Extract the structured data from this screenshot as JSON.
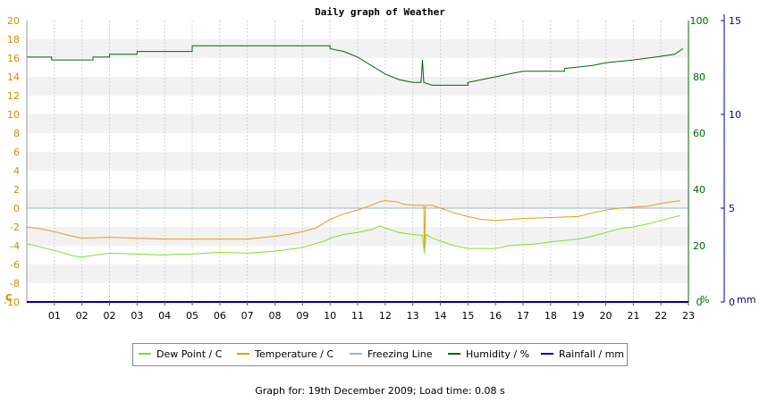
{
  "chart_data": {
    "type": "line",
    "title": "Daily graph of Weather",
    "x_ticks": [
      "01",
      "02",
      "02",
      "03",
      "04",
      "05",
      "06",
      "07",
      "08",
      "09",
      "10",
      "11",
      "12",
      "13",
      "14",
      "15",
      "16",
      "17",
      "18",
      "19",
      "20",
      "21",
      "22",
      "23"
    ],
    "x_range": [
      0,
      24
    ],
    "y_left": {
      "label": "C",
      "min": -10,
      "max": 20,
      "ticks": [
        -10,
        -8,
        -6,
        -4,
        -2,
        0,
        2,
        4,
        6,
        8,
        10,
        12,
        14,
        16,
        18,
        20
      ],
      "color": "#d08c00"
    },
    "y_humidity": {
      "label": "%",
      "min": 0,
      "max": 100,
      "ticks": [
        0,
        20,
        40,
        60,
        80,
        100
      ],
      "color": "#006600"
    },
    "y_rain": {
      "label": "mm",
      "min": 0,
      "max": 15,
      "ticks": [
        0,
        5,
        10,
        15
      ],
      "color": "#000099"
    },
    "series": [
      {
        "name": "Dew Point / C",
        "axis": "temp",
        "color": "#7ee12a",
        "points": [
          [
            0,
            -3.8
          ],
          [
            1,
            -4.5
          ],
          [
            1.7,
            -5.1
          ],
          [
            2,
            -5.2
          ],
          [
            2.5,
            -5.0
          ],
          [
            3,
            -4.8
          ],
          [
            4,
            -4.9
          ],
          [
            5,
            -5.0
          ],
          [
            5.5,
            -4.9
          ],
          [
            6,
            -4.9
          ],
          [
            7,
            -4.7
          ],
          [
            8,
            -4.8
          ],
          [
            9,
            -4.6
          ],
          [
            10,
            -4.2
          ],
          [
            10.8,
            -3.5
          ],
          [
            11,
            -3.2
          ],
          [
            11.5,
            -2.8
          ],
          [
            12,
            -2.6
          ],
          [
            12.5,
            -2.3
          ],
          [
            12.8,
            -1.9
          ],
          [
            13.1,
            -2.2
          ],
          [
            13.5,
            -2.6
          ],
          [
            14,
            -2.8
          ],
          [
            14.35,
            -2.9
          ],
          [
            14.42,
            -4.8
          ],
          [
            14.48,
            -2.8
          ],
          [
            14.7,
            -3.2
          ],
          [
            15,
            -3.5
          ],
          [
            15.5,
            -4.0
          ],
          [
            16,
            -4.3
          ],
          [
            17,
            -4.3
          ],
          [
            17.5,
            -4.0
          ],
          [
            18.5,
            -3.8
          ],
          [
            19,
            -3.6
          ],
          [
            20,
            -3.3
          ],
          [
            20.5,
            -3.0
          ],
          [
            21,
            -2.6
          ],
          [
            21.5,
            -2.2
          ],
          [
            22,
            -2.0
          ],
          [
            22.5,
            -1.7
          ],
          [
            23,
            -1.3
          ],
          [
            23.7,
            -0.8
          ]
        ]
      },
      {
        "name": "Temperature / C",
        "axis": "temp",
        "color": "#e89a10",
        "points": [
          [
            0,
            -2.0
          ],
          [
            0.5,
            -2.2
          ],
          [
            1,
            -2.5
          ],
          [
            1.5,
            -2.9
          ],
          [
            2,
            -3.2
          ],
          [
            3,
            -3.1
          ],
          [
            4,
            -3.2
          ],
          [
            5,
            -3.3
          ],
          [
            6,
            -3.3
          ],
          [
            7,
            -3.3
          ],
          [
            8,
            -3.3
          ],
          [
            9,
            -3.0
          ],
          [
            9.5,
            -2.8
          ],
          [
            10,
            -2.5
          ],
          [
            10.5,
            -2.1
          ],
          [
            11,
            -1.2
          ],
          [
            11.5,
            -0.6
          ],
          [
            12,
            -0.2
          ],
          [
            12.5,
            0.3
          ],
          [
            12.8,
            0.7
          ],
          [
            13,
            0.8
          ],
          [
            13.4,
            0.7
          ],
          [
            13.7,
            0.4
          ],
          [
            14,
            0.3
          ],
          [
            14.4,
            0.3
          ],
          [
            14.42,
            -4.3
          ],
          [
            14.46,
            0.3
          ],
          [
            14.7,
            0.3
          ],
          [
            15,
            0.0
          ],
          [
            15.5,
            -0.5
          ],
          [
            16,
            -0.9
          ],
          [
            16.5,
            -1.2
          ],
          [
            17,
            -1.3
          ],
          [
            17.5,
            -1.2
          ],
          [
            18,
            -1.1
          ],
          [
            19,
            -1.0
          ],
          [
            20,
            -0.9
          ],
          [
            20.5,
            -0.5
          ],
          [
            21,
            -0.2
          ],
          [
            21.5,
            0.0
          ],
          [
            22,
            0.1
          ],
          [
            22.5,
            0.2
          ],
          [
            23,
            0.5
          ],
          [
            23.7,
            0.8
          ]
        ]
      },
      {
        "name": "Freezing Line",
        "axis": "temp",
        "color": "#9ab3d3",
        "points": [
          [
            0,
            0
          ],
          [
            24,
            0
          ]
        ]
      },
      {
        "name": "Humidity / %",
        "axis": "humidity",
        "color": "#006600",
        "points": [
          [
            0,
            87
          ],
          [
            0.9,
            87
          ],
          [
            0.9,
            86
          ],
          [
            2.4,
            86
          ],
          [
            2.4,
            87
          ],
          [
            3,
            87
          ],
          [
            3,
            88
          ],
          [
            4,
            88
          ],
          [
            4,
            89
          ],
          [
            6,
            89
          ],
          [
            6,
            91
          ],
          [
            11,
            91
          ],
          [
            11,
            90
          ],
          [
            11.5,
            89
          ],
          [
            12,
            87
          ],
          [
            12.5,
            84
          ],
          [
            13,
            81
          ],
          [
            13.5,
            79
          ],
          [
            14,
            78
          ],
          [
            14.3,
            78
          ],
          [
            14.35,
            86
          ],
          [
            14.4,
            78
          ],
          [
            14.7,
            77
          ],
          [
            16,
            77
          ],
          [
            16,
            78
          ],
          [
            16.5,
            79
          ],
          [
            17,
            80
          ],
          [
            17.5,
            81
          ],
          [
            18,
            82
          ],
          [
            19.5,
            82
          ],
          [
            19.5,
            83
          ],
          [
            20.5,
            84
          ],
          [
            21,
            85
          ],
          [
            22,
            86
          ],
          [
            22.8,
            87
          ],
          [
            23.5,
            88
          ],
          [
            23.8,
            90
          ]
        ]
      },
      {
        "name": "Rainfall / mm",
        "axis": "rain",
        "color": "#0000cc",
        "points": [
          [
            0,
            0
          ],
          [
            24,
            0
          ]
        ]
      }
    ],
    "grid": true,
    "legend": "bottom"
  },
  "footer": "Graph for: 19th December 2009; Load time: 0.08 s"
}
